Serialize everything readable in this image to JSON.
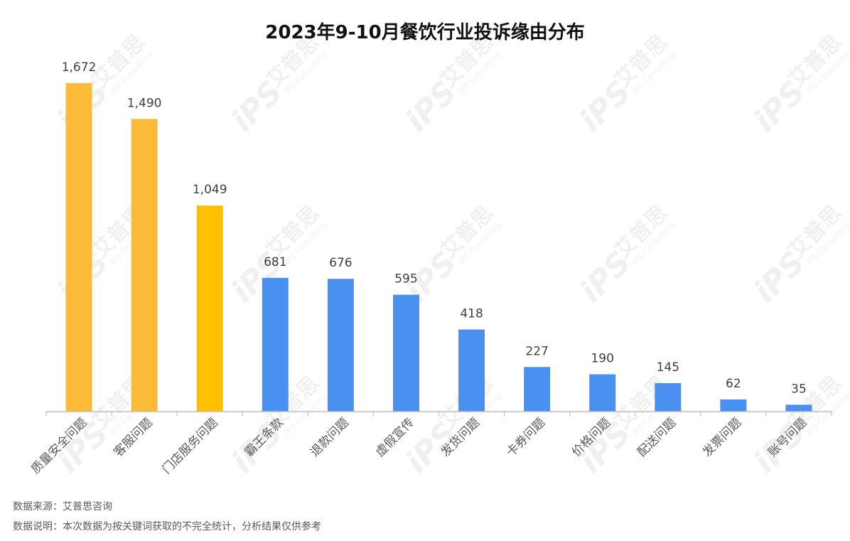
{
  "chart_data": {
    "type": "bar",
    "title": "2023年9-10月餐饮行业投诉缘由分布",
    "categories": [
      "质量安全问题",
      "客服问题",
      "门店服务问题",
      "霸王条款",
      "退款问题",
      "虚假宣传",
      "发货问题",
      "卡券问题",
      "价格问题",
      "配送问题",
      "发票问题",
      "账号问题"
    ],
    "values": [
      1672,
      1490,
      1049,
      681,
      676,
      595,
      418,
      227,
      190,
      145,
      62,
      35
    ],
    "value_labels": [
      "1,672",
      "1,490",
      "1,049",
      "681",
      "676",
      "595",
      "418",
      "227",
      "190",
      "145",
      "62",
      "35"
    ],
    "bar_colors": [
      "#FBBA38",
      "#FBBA38",
      "#FFC000",
      "#4A90F0",
      "#4A90F0",
      "#4A90F0",
      "#4A90F0",
      "#4A90F0",
      "#4A90F0",
      "#4A90F0",
      "#4A90F0",
      "#4A90F0"
    ],
    "ylim": [
      0,
      1672
    ],
    "grid": false,
    "xlabel": "",
    "ylabel": ""
  },
  "notes": {
    "source": "数据来源：艾普思咨询",
    "explanation": "数据说明：本次数据为按关键词获取的不完全统计，分析结果仅供参考"
  },
  "watermark": {
    "brand": "艾普思",
    "logo": "iPS",
    "sub": "IPS Consulting"
  }
}
